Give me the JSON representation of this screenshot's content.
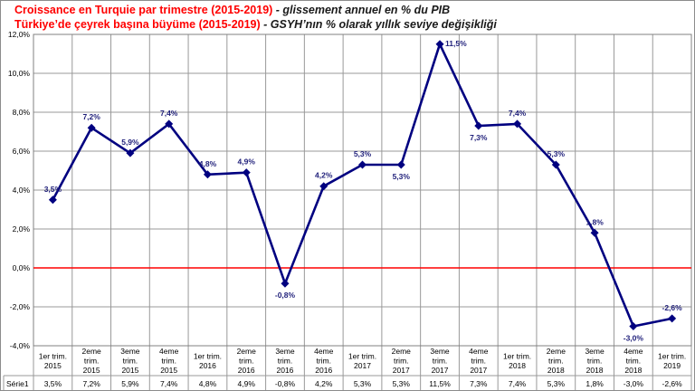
{
  "title_line1": "Croissance  en Turquie par trimestre (2015-2019)",
  "title_line1_sub": " - glissement annuel en % du PIB",
  "title_line2": "Türkiye’de çeyrek başına büyüme (2015-2019)",
  "title_line2_sub": " - GSYH’nın % olarak yıllık seviye değişikliği",
  "colors": {
    "line": "#000080",
    "zero_line": "#ff0000",
    "grid": "#999999",
    "title": "#ff0000"
  },
  "chart_data": {
    "type": "line",
    "title": "Croissance  en Turquie par trimestre (2015-2019)",
    "categories": [
      [
        "1er trim.",
        "2015"
      ],
      [
        "2eme",
        "trim.",
        "2015"
      ],
      [
        "3eme",
        "trim.",
        "2015"
      ],
      [
        "4eme",
        "trim.",
        "2015"
      ],
      [
        "1er trim.",
        "2016"
      ],
      [
        "2eme",
        "trim.",
        "2016"
      ],
      [
        "3eme",
        "trim.",
        "2016"
      ],
      [
        "4eme",
        "trim.",
        "2016"
      ],
      [
        "1er trim.",
        "2017"
      ],
      [
        "2eme",
        "trim.",
        "2017"
      ],
      [
        "3eme",
        "trim.",
        "2017"
      ],
      [
        "4eme",
        "trim.",
        "2017"
      ],
      [
        "1er trim.",
        "2018"
      ],
      [
        "2eme",
        "trim.",
        "2018"
      ],
      [
        "3eme",
        "trim.",
        "2018"
      ],
      [
        "4eme",
        "trim.",
        "2018"
      ],
      [
        "1er trim.",
        "2019"
      ]
    ],
    "series": [
      {
        "name": "Série1",
        "values": [
          3.5,
          7.2,
          5.9,
          7.4,
          4.8,
          4.9,
          -0.8,
          4.2,
          5.3,
          5.3,
          11.5,
          7.3,
          7.4,
          5.3,
          1.8,
          -3.0,
          -2.6
        ],
        "labels": [
          "3,5%",
          "7,2%",
          "5,9%",
          "7,4%",
          "4,8%",
          "4,9%",
          "-0,8%",
          "4,2%",
          "5,3%",
          "5,3%",
          "11,5%",
          "7,3%",
          "7,4%",
          "5,3%",
          "1,8%",
          "-3,0%",
          "-2,6%"
        ],
        "label_pos": [
          "above",
          "above",
          "above",
          "above",
          "above",
          "above",
          "below",
          "above",
          "above",
          "below",
          "right",
          "below",
          "above",
          "above",
          "above",
          "below",
          "above"
        ]
      }
    ],
    "yticks": [
      12,
      10,
      8,
      6,
      4,
      2,
      0,
      -2,
      -4
    ],
    "ytick_labels": [
      "12,0%",
      "10,0%",
      "8,0%",
      "6,0%",
      "4,0%",
      "2,0%",
      "0,0%",
      "-2,0%",
      "-4,0%"
    ],
    "ylim": [
      -4,
      12
    ],
    "grid": true,
    "legend": "data table below"
  }
}
